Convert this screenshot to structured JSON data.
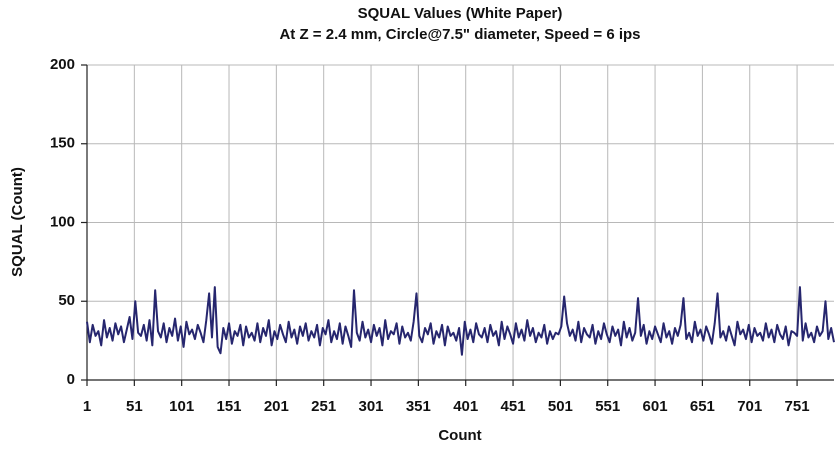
{
  "chart_data": {
    "type": "line",
    "title": "SQUAL Values (White Paper)",
    "subtitle": "At Z = 2.4 mm, Circle@7.5\" diameter, Speed = 6 ips",
    "x_label": "Count",
    "y_label": "SQUAL (Count)",
    "color": "#26266e",
    "grid": true,
    "xlim": [
      1,
      790
    ],
    "xticks": [
      1,
      51,
      101,
      151,
      201,
      251,
      301,
      351,
      401,
      451,
      501,
      551,
      601,
      651,
      701,
      751
    ],
    "ylim": [
      0,
      200
    ],
    "yticks": [
      0,
      50,
      100,
      150,
      200
    ],
    "x": [
      1,
      4,
      7,
      10,
      13,
      16,
      19,
      22,
      25,
      28,
      31,
      34,
      37,
      40,
      43,
      46,
      49,
      52,
      55,
      58,
      61,
      64,
      67,
      70,
      73,
      76,
      79,
      82,
      85,
      88,
      91,
      94,
      97,
      100,
      103,
      106,
      109,
      112,
      115,
      118,
      121,
      124,
      127,
      130,
      133,
      136,
      139,
      142,
      145,
      148,
      151,
      154,
      157,
      160,
      163,
      166,
      169,
      172,
      175,
      178,
      181,
      184,
      187,
      190,
      193,
      196,
      199,
      202,
      205,
      208,
      211,
      214,
      217,
      220,
      223,
      226,
      229,
      232,
      235,
      238,
      241,
      244,
      247,
      250,
      253,
      256,
      259,
      262,
      265,
      268,
      271,
      274,
      277,
      280,
      283,
      286,
      289,
      292,
      295,
      298,
      301,
      304,
      307,
      310,
      313,
      316,
      319,
      322,
      325,
      328,
      331,
      334,
      337,
      340,
      343,
      346,
      349,
      352,
      355,
      358,
      361,
      364,
      367,
      370,
      373,
      376,
      379,
      382,
      385,
      388,
      391,
      394,
      397,
      400,
      403,
      406,
      409,
      412,
      415,
      418,
      421,
      424,
      427,
      430,
      433,
      436,
      439,
      442,
      445,
      448,
      451,
      454,
      457,
      460,
      463,
      466,
      469,
      472,
      475,
      478,
      481,
      484,
      487,
      490,
      493,
      496,
      499,
      502,
      505,
      508,
      511,
      514,
      517,
      520,
      523,
      526,
      529,
      532,
      535,
      538,
      541,
      544,
      547,
      550,
      553,
      556,
      559,
      562,
      565,
      568,
      571,
      574,
      577,
      580,
      583,
      586,
      589,
      592,
      595,
      598,
      601,
      604,
      607,
      610,
      613,
      616,
      619,
      622,
      625,
      628,
      631,
      634,
      637,
      640,
      643,
      646,
      649,
      652,
      655,
      658,
      661,
      664,
      667,
      670,
      673,
      676,
      679,
      682,
      685,
      688,
      691,
      694,
      697,
      700,
      703,
      706,
      709,
      712,
      715,
      718,
      721,
      724,
      727,
      730,
      733,
      736,
      739,
      742,
      745,
      748,
      751,
      754,
      757,
      760,
      763,
      766,
      769,
      772,
      775,
      778,
      781,
      784,
      787,
      790
    ],
    "values": [
      37,
      24,
      35,
      28,
      31,
      22,
      38,
      27,
      33,
      25,
      36,
      29,
      34,
      24,
      32,
      40,
      26,
      50,
      30,
      28,
      35,
      25,
      38,
      22,
      57,
      31,
      27,
      36,
      24,
      33,
      28,
      39,
      25,
      34,
      21,
      37,
      29,
      32,
      26,
      35,
      30,
      24,
      38,
      55,
      27,
      59,
      21,
      17,
      33,
      26,
      36,
      23,
      31,
      28,
      35,
      22,
      34,
      27,
      30,
      25,
      36,
      24,
      33,
      28,
      38,
      22,
      31,
      26,
      35,
      29,
      24,
      37,
      27,
      32,
      23,
      34,
      28,
      36,
      25,
      31,
      27,
      35,
      22,
      33,
      29,
      38,
      24,
      31,
      26,
      36,
      23,
      34,
      28,
      21,
      57,
      30,
      25,
      37,
      27,
      32,
      24,
      35,
      28,
      33,
      22,
      38,
      26,
      31,
      29,
      36,
      23,
      34,
      27,
      30,
      25,
      37,
      55,
      28,
      24,
      33,
      29,
      36,
      23,
      31,
      27,
      35,
      22,
      34,
      28,
      30,
      25,
      33,
      16,
      37,
      26,
      32,
      24,
      36,
      29,
      27,
      33,
      24,
      35,
      28,
      31,
      22,
      37,
      26,
      34,
      29,
      23,
      36,
      27,
      32,
      25,
      38,
      28,
      33,
      24,
      30,
      27,
      35,
      23,
      31,
      26,
      30,
      29,
      34,
      53,
      36,
      28,
      32,
      25,
      37,
      24,
      33,
      29,
      27,
      35,
      23,
      31,
      26,
      36,
      29,
      24,
      34,
      28,
      32,
      22,
      37,
      27,
      33,
      25,
      30,
      52,
      28,
      35,
      23,
      31,
      26,
      34,
      29,
      24,
      36,
      27,
      31,
      23,
      33,
      28,
      35,
      52,
      26,
      30,
      24,
      37,
      28,
      32,
      25,
      34,
      29,
      23,
      36,
      55,
      27,
      31,
      25,
      34,
      28,
      22,
      37,
      29,
      32,
      26,
      35,
      24,
      33,
      28,
      30,
      25,
      36,
      27,
      32,
      24,
      35,
      29,
      26,
      34,
      22,
      31,
      30,
      28,
      59,
      25,
      36,
      27,
      30,
      24,
      34,
      28,
      31,
      50,
      26,
      33,
      24
    ]
  }
}
